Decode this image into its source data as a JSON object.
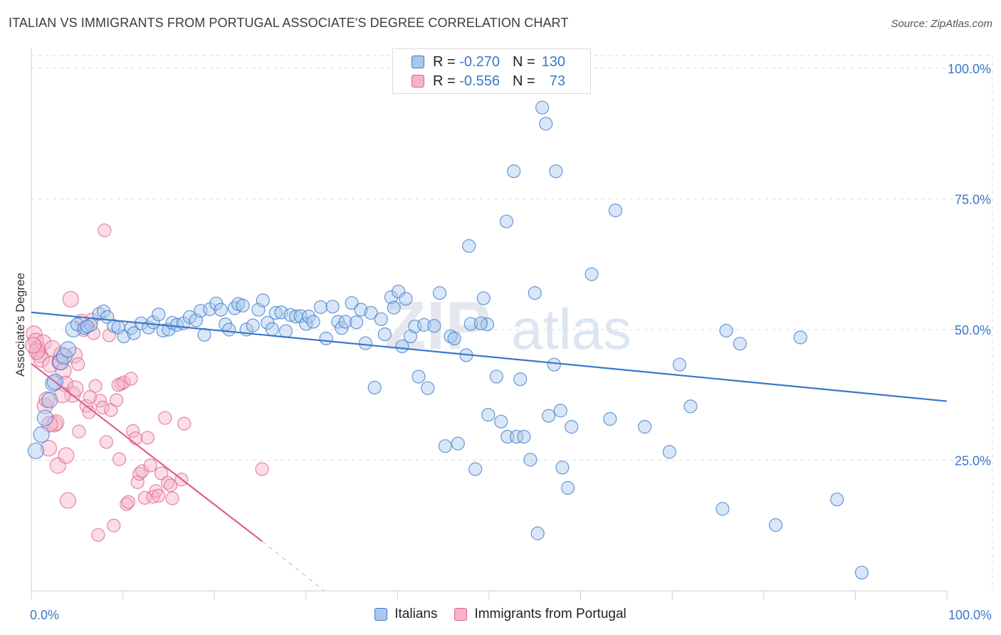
{
  "title": "ITALIAN VS IMMIGRANTS FROM PORTUGAL ASSOCIATE'S DEGREE CORRELATION CHART",
  "source": "Source: ZipAtlas.com",
  "watermark": {
    "zip": "ZIP",
    "atlas": "atlas"
  },
  "colors": {
    "blue": "#3a78c8",
    "blue_fill": "#a9c8ee",
    "pink": "#e0608c",
    "pink_fill": "#f5b3c8",
    "grid": "#dddddd",
    "axis_text": "#3a78c8"
  },
  "legend": {
    "rows": [
      {
        "r_label": "R = ",
        "r_value": "-0.270",
        "n_label": "N = ",
        "n_value": "130"
      },
      {
        "r_label": "R = ",
        "r_value": "-0.556",
        "n_label": "N = ",
        "n_value": "73"
      }
    ]
  },
  "chart_data": {
    "type": "scatter",
    "ylabel": "Associate's Degree",
    "xlim": [
      0,
      100
    ],
    "ylim": [
      0,
      100
    ],
    "x_tick_labels": [
      "0.0%",
      "100.0%"
    ],
    "y_ticks": [
      {
        "value": 100,
        "label": "100.0%"
      },
      {
        "value": 75,
        "label": "75.0%"
      },
      {
        "value": 50,
        "label": "50.0%"
      },
      {
        "value": 25,
        "label": "25.0%"
      }
    ],
    "grid": true,
    "series": [
      {
        "name": "Italians",
        "color": "blue",
        "trend": {
          "x": [
            0,
            100
          ],
          "y": [
            53.3,
            36.3
          ]
        },
        "points": [
          [
            0.5,
            26.8
          ],
          [
            1.1,
            29.9
          ],
          [
            1.5,
            33.1
          ],
          [
            2.0,
            36.5
          ],
          [
            2.4,
            39.7
          ],
          [
            3.2,
            43.8
          ],
          [
            3.6,
            44.9
          ],
          [
            4.0,
            46.2
          ],
          [
            4.6,
            50.1
          ],
          [
            5.0,
            51.0
          ],
          [
            5.8,
            50.3
          ],
          [
            6.5,
            50.9
          ],
          [
            7.4,
            53.0
          ],
          [
            7.9,
            53.5
          ],
          [
            8.3,
            52.4
          ],
          [
            9.0,
            50.7
          ],
          [
            9.5,
            50.4
          ],
          [
            10.1,
            48.7
          ],
          [
            10.9,
            50.3
          ],
          [
            11.2,
            49.3
          ],
          [
            12.0,
            51.2
          ],
          [
            12.8,
            50.4
          ],
          [
            13.3,
            51.4
          ],
          [
            13.9,
            52.9
          ],
          [
            14.4,
            49.8
          ],
          [
            15.0,
            50.0
          ],
          [
            15.4,
            51.3
          ],
          [
            15.9,
            50.9
          ],
          [
            16.6,
            51.2
          ],
          [
            17.3,
            52.4
          ],
          [
            18.0,
            51.8
          ],
          [
            18.5,
            53.6
          ],
          [
            18.9,
            49.0
          ],
          [
            19.5,
            53.9
          ],
          [
            20.2,
            55.0
          ],
          [
            20.7,
            53.8
          ],
          [
            21.2,
            51.0
          ],
          [
            21.6,
            50.0
          ],
          [
            22.2,
            54.1
          ],
          [
            22.6,
            54.9
          ],
          [
            23.1,
            54.6
          ],
          [
            23.5,
            50.0
          ],
          [
            24.2,
            50.8
          ],
          [
            24.8,
            53.8
          ],
          [
            25.3,
            55.6
          ],
          [
            25.8,
            51.3
          ],
          [
            26.3,
            50.1
          ],
          [
            26.7,
            53.2
          ],
          [
            27.3,
            53.3
          ],
          [
            27.8,
            49.7
          ],
          [
            28.3,
            52.8
          ],
          [
            28.9,
            52.5
          ],
          [
            29.4,
            52.6
          ],
          [
            30.0,
            51.1
          ],
          [
            30.3,
            52.5
          ],
          [
            30.8,
            51.5
          ],
          [
            31.6,
            54.3
          ],
          [
            32.2,
            48.3
          ],
          [
            32.9,
            54.4
          ],
          [
            33.5,
            51.5
          ],
          [
            33.9,
            50.3
          ],
          [
            34.3,
            51.5
          ],
          [
            35.0,
            55.1
          ],
          [
            35.5,
            51.4
          ],
          [
            36.0,
            53.8
          ],
          [
            36.5,
            47.4
          ],
          [
            37.1,
            53.2
          ],
          [
            37.5,
            38.9
          ],
          [
            38.2,
            52.0
          ],
          [
            38.6,
            49.1
          ],
          [
            39.3,
            56.2
          ],
          [
            39.6,
            54.2
          ],
          [
            40.1,
            57.3
          ],
          [
            40.5,
            46.8
          ],
          [
            40.9,
            55.9
          ],
          [
            41.4,
            48.7
          ],
          [
            41.9,
            50.6
          ],
          [
            42.3,
            41.0
          ],
          [
            42.9,
            50.9
          ],
          [
            43.3,
            38.8
          ],
          [
            44.0,
            50.7
          ],
          [
            44.6,
            57.0
          ],
          [
            45.2,
            27.7
          ],
          [
            45.8,
            48.7
          ],
          [
            46.2,
            48.3
          ],
          [
            46.6,
            28.2
          ],
          [
            47.5,
            45.1
          ],
          [
            47.8,
            66.0
          ],
          [
            48.5,
            23.3
          ],
          [
            48.0,
            51.1
          ],
          [
            49.4,
            56.0
          ],
          [
            49.8,
            51.0
          ],
          [
            49.1,
            51.2
          ],
          [
            49.9,
            33.7
          ],
          [
            50.8,
            41.0
          ],
          [
            51.3,
            32.4
          ],
          [
            51.9,
            70.7
          ],
          [
            52.0,
            29.5
          ],
          [
            52.7,
            80.3
          ],
          [
            53.0,
            29.5
          ],
          [
            53.4,
            40.5
          ],
          [
            53.8,
            29.5
          ],
          [
            54.5,
            25.1
          ],
          [
            55.0,
            57.0
          ],
          [
            55.3,
            11.0
          ],
          [
            55.8,
            92.5
          ],
          [
            56.2,
            89.4
          ],
          [
            56.5,
            33.5
          ],
          [
            57.1,
            43.3
          ],
          [
            57.3,
            80.3
          ],
          [
            57.8,
            34.5
          ],
          [
            58.0,
            23.6
          ],
          [
            58.6,
            19.7
          ],
          [
            59.0,
            31.4
          ],
          [
            61.2,
            60.6
          ],
          [
            63.2,
            32.9
          ],
          [
            63.8,
            72.8
          ],
          [
            67.0,
            31.4
          ],
          [
            69.7,
            26.6
          ],
          [
            70.8,
            43.3
          ],
          [
            72.0,
            35.3
          ],
          [
            75.5,
            15.7
          ],
          [
            75.9,
            49.8
          ],
          [
            77.4,
            47.3
          ],
          [
            81.3,
            12.6
          ],
          [
            84.0,
            48.5
          ],
          [
            88.0,
            17.5
          ],
          [
            90.7,
            3.5
          ],
          [
            2.6,
            40.0
          ],
          [
            6.1,
            50.6
          ]
        ]
      },
      {
        "name": "Immigrants from Portugal",
        "color": "pink",
        "trend": {
          "x": [
            0,
            25.2
          ],
          "y": [
            43.5,
            9.5
          ]
        },
        "trend_dashed": {
          "x": [
            25.2,
            32.0
          ],
          "y": [
            9.5,
            0
          ]
        },
        "points": [
          [
            0.3,
            49.2
          ],
          [
            0.5,
            47.8
          ],
          [
            0.7,
            46.3
          ],
          [
            0.9,
            45.2
          ],
          [
            1.1,
            44.3
          ],
          [
            1.3,
            47.5
          ],
          [
            1.5,
            35.4
          ],
          [
            1.7,
            36.6
          ],
          [
            1.9,
            27.3
          ],
          [
            2.1,
            43.3
          ],
          [
            2.3,
            46.4
          ],
          [
            2.5,
            31.9
          ],
          [
            2.7,
            32.2
          ],
          [
            2.9,
            24.0
          ],
          [
            3.1,
            43.8
          ],
          [
            3.3,
            45.2
          ],
          [
            3.5,
            42.1
          ],
          [
            3.7,
            39.6
          ],
          [
            3.8,
            25.9
          ],
          [
            4.0,
            17.3
          ],
          [
            4.3,
            55.8
          ],
          [
            4.5,
            37.6
          ],
          [
            4.7,
            45.1
          ],
          [
            4.8,
            38.7
          ],
          [
            5.1,
            43.4
          ],
          [
            5.2,
            30.5
          ],
          [
            5.5,
            51.7
          ],
          [
            5.7,
            49.9
          ],
          [
            6.0,
            35.4
          ],
          [
            6.3,
            34.2
          ],
          [
            6.6,
            51.9
          ],
          [
            6.8,
            49.3
          ],
          [
            7.0,
            39.2
          ],
          [
            7.3,
            10.7
          ],
          [
            7.5,
            36.4
          ],
          [
            7.8,
            35.1
          ],
          [
            8.0,
            69.0
          ],
          [
            8.2,
            28.5
          ],
          [
            8.5,
            48.9
          ],
          [
            8.7,
            34.6
          ],
          [
            9.0,
            12.5
          ],
          [
            9.3,
            36.5
          ],
          [
            9.6,
            25.2
          ],
          [
            9.8,
            39.6
          ],
          [
            10.1,
            39.9
          ],
          [
            10.4,
            16.6
          ],
          [
            10.6,
            17.0
          ],
          [
            10.9,
            40.6
          ],
          [
            11.1,
            30.6
          ],
          [
            11.4,
            29.2
          ],
          [
            11.6,
            20.8
          ],
          [
            11.8,
            22.4
          ],
          [
            12.1,
            22.9
          ],
          [
            12.4,
            17.8
          ],
          [
            12.7,
            29.3
          ],
          [
            13.0,
            24.0
          ],
          [
            13.3,
            18.0
          ],
          [
            13.6,
            19.1
          ],
          [
            13.9,
            18.2
          ],
          [
            14.2,
            22.5
          ],
          [
            14.6,
            33.1
          ],
          [
            14.9,
            20.7
          ],
          [
            15.2,
            20.2
          ],
          [
            15.4,
            17.7
          ],
          [
            16.4,
            21.3
          ],
          [
            16.7,
            32.0
          ],
          [
            25.2,
            23.3
          ],
          [
            6.4,
            37.1
          ],
          [
            3.4,
            37.5
          ],
          [
            2.0,
            31.9
          ],
          [
            0.6,
            45.8
          ],
          [
            9.5,
            39.4
          ],
          [
            0.2,
            47.0
          ]
        ]
      }
    ]
  }
}
